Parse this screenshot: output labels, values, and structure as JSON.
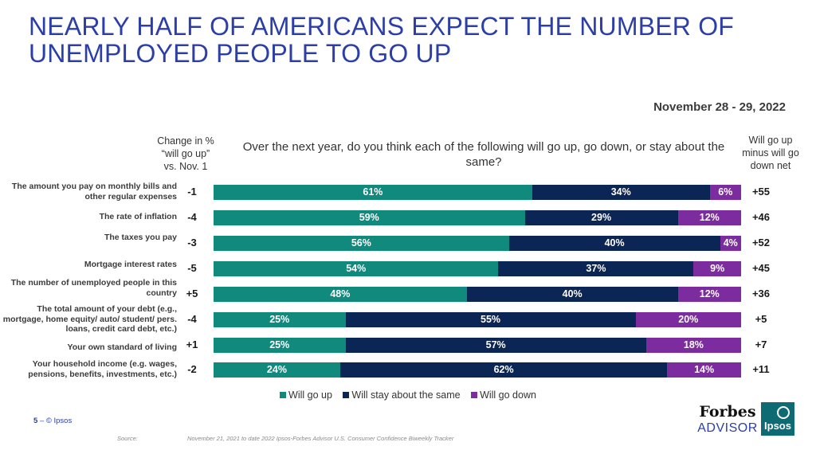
{
  "title": "NEARLY HALF OF AMERICANS EXPECT THE NUMBER OF UNEMPLOYED PEOPLE TO GO UP",
  "date": "November 28 - 29, 2022",
  "headers": {
    "change": "Change in % “will go up” vs. Nov. 1",
    "question": "Over the next year, do you think each of the following will go up, go down, or stay about the same?",
    "net": "Will go up minus will go down net"
  },
  "colors": {
    "up": "#118a7e",
    "same": "#0b2554",
    "down": "#7c2c9e",
    "title": "#2c3ea8"
  },
  "chart_data": {
    "type": "bar",
    "stacked": true,
    "orientation": "horizontal",
    "categories": [
      "The amount you pay on monthly bills and other regular expenses",
      "The rate of inflation",
      "The taxes you pay",
      "Mortgage interest rates",
      "The number of unemployed people in this country",
      "The total amount of your debt (e.g., mortgage, home equity/ auto/ student/ pers. loans, credit card debt, etc.)",
      "Your own standard of living",
      "Your household income (e.g. wages, pensions, benefits, investments, etc.)"
    ],
    "series": [
      {
        "name": "Will go up",
        "values": [
          61,
          59,
          56,
          54,
          48,
          25,
          25,
          24
        ]
      },
      {
        "name": "Will stay about the same",
        "values": [
          34,
          29,
          40,
          37,
          40,
          55,
          57,
          62
        ]
      },
      {
        "name": "Will go down",
        "values": [
          6,
          12,
          4,
          9,
          12,
          20,
          18,
          14
        ]
      }
    ],
    "change": [
      "-1",
      "-4",
      "-3",
      "-5",
      "+5",
      "-4",
      "+1",
      "-2"
    ],
    "net": [
      "+55",
      "+46",
      "+52",
      "+45",
      "+36",
      "+5",
      "+7",
      "+11"
    ],
    "legend": [
      "Will go up",
      "Will stay about the same",
      "Will go down"
    ],
    "legend_position": "bottom"
  },
  "footer": {
    "page": "5",
    "copyright": "– © Ipsos",
    "source_label": "Source:",
    "source_text": "November 21, 2021 to date 2022 Ipsos-Forbes Advisor U.S. Consumer Confidence Biweekly Tracker"
  },
  "logos": {
    "forbes": "Forbes",
    "advisor": "ADVISOR",
    "ipsos": "Ipsos"
  }
}
